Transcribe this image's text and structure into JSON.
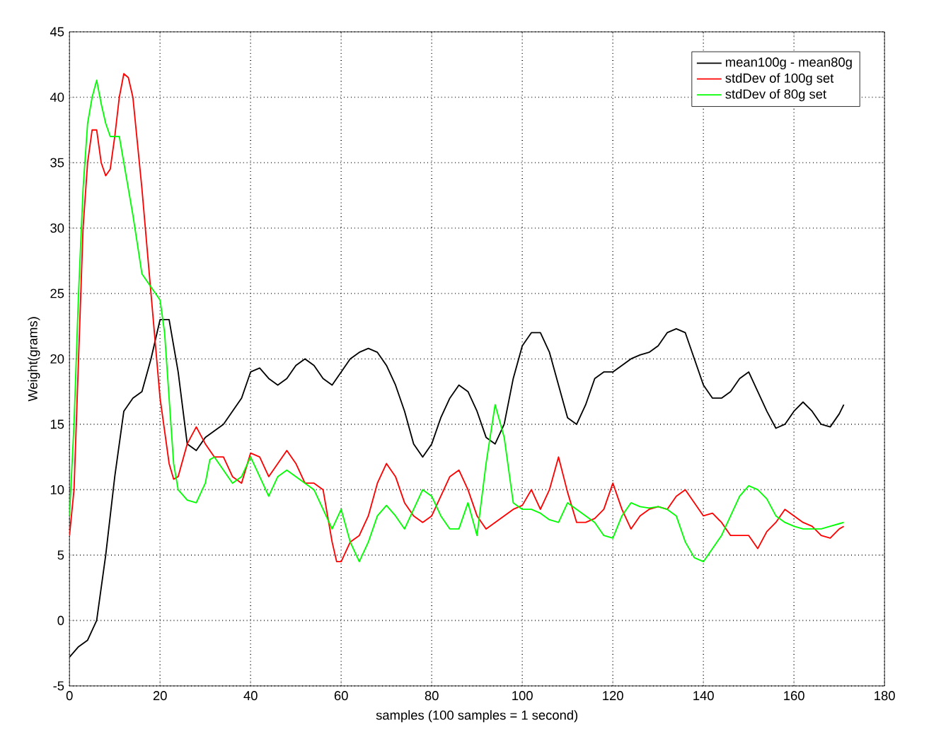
{
  "chart_data": {
    "type": "line",
    "xlabel": "samples (100 samples = 1 second)",
    "ylabel": "Weight(grams)",
    "xlim": [
      0,
      180
    ],
    "ylim": [
      -5,
      45
    ],
    "xticks": [
      0,
      20,
      40,
      60,
      80,
      100,
      120,
      140,
      160,
      180
    ],
    "yticks": [
      -5,
      0,
      5,
      10,
      15,
      20,
      25,
      30,
      35,
      40,
      45
    ],
    "grid": true,
    "legend": "top right",
    "line_style": "solid",
    "series": [
      {
        "name": "mean100g - mean80g",
        "color": "#000000",
        "x": [
          0,
          2,
          4,
          6,
          8,
          10,
          12,
          14,
          16,
          18,
          20,
          22,
          24,
          26,
          28,
          30,
          32,
          34,
          36,
          38,
          40,
          42,
          44,
          46,
          48,
          50,
          52,
          54,
          56,
          58,
          60,
          62,
          64,
          66,
          68,
          70,
          72,
          74,
          76,
          78,
          80,
          82,
          84,
          86,
          88,
          90,
          92,
          94,
          96,
          98,
          100,
          102,
          104,
          106,
          108,
          110,
          112,
          114,
          116,
          118,
          120,
          122,
          124,
          126,
          128,
          130,
          132,
          134,
          136,
          138,
          140,
          142,
          144,
          146,
          148,
          150,
          152,
          154,
          156,
          158,
          160,
          162,
          164,
          166,
          168,
          170,
          171
        ],
        "values": [
          -2.8,
          -2,
          -1.5,
          0,
          5,
          11,
          16,
          17,
          17.5,
          20,
          23,
          23,
          19,
          13.5,
          13,
          14,
          14.5,
          15,
          16,
          17,
          19,
          19.3,
          18.5,
          18,
          18.5,
          19.5,
          20,
          19.5,
          18.5,
          18,
          19,
          20,
          20.5,
          20.8,
          20.5,
          19.5,
          18,
          16,
          13.5,
          12.5,
          13.5,
          15.5,
          17,
          18,
          17.5,
          16,
          14,
          13.5,
          15,
          18.5,
          21,
          22,
          22,
          20.5,
          18,
          15.5,
          15,
          16.5,
          18.5,
          19,
          19,
          19.5,
          20,
          20.3,
          20.5,
          21,
          22,
          22.3,
          22,
          20,
          18,
          17,
          17,
          17.5,
          18.5,
          19,
          17.5,
          16,
          14.7,
          15,
          16,
          16.7,
          16,
          15,
          14.8,
          15.8,
          16.5
        ]
      },
      {
        "name": "stdDev of 100g set",
        "color": "#ff0000",
        "x": [
          0,
          1,
          2,
          3,
          4,
          5,
          6,
          7,
          8,
          9,
          10,
          11,
          12,
          13,
          14,
          16,
          18,
          20,
          22,
          23,
          24,
          26,
          28,
          30,
          32,
          34,
          36,
          38,
          40,
          42,
          44,
          46,
          48,
          50,
          52,
          54,
          56,
          58,
          59,
          60,
          62,
          64,
          66,
          68,
          70,
          72,
          74,
          76,
          78,
          80,
          82,
          84,
          86,
          88,
          90,
          92,
          94,
          96,
          98,
          100,
          102,
          104,
          106,
          108,
          110,
          112,
          114,
          116,
          118,
          120,
          122,
          124,
          126,
          128,
          130,
          132,
          134,
          136,
          138,
          140,
          142,
          144,
          146,
          148,
          150,
          152,
          154,
          156,
          158,
          160,
          162,
          164,
          166,
          168,
          170,
          171
        ],
        "values": [
          6.5,
          10,
          20,
          30,
          35,
          37.5,
          37.5,
          35,
          34,
          34.5,
          37,
          40,
          41.8,
          41.5,
          40,
          33,
          25,
          17,
          12,
          10.8,
          11,
          13.5,
          14.8,
          13.5,
          12.5,
          12.5,
          11,
          10.5,
          12.8,
          12.5,
          11,
          12,
          13,
          12,
          10.5,
          10.5,
          10,
          6,
          4.5,
          4.5,
          6,
          6.5,
          8,
          10.5,
          12,
          11,
          9,
          8,
          7.5,
          8,
          9.5,
          11,
          11.5,
          10,
          8,
          7,
          7.5,
          8,
          8.5,
          8.8,
          10,
          8.5,
          10,
          12.5,
          9.8,
          7.5,
          7.5,
          7.8,
          8.5,
          10.5,
          8.5,
          7,
          8,
          8.5,
          8.7,
          8.5,
          9.5,
          10,
          9,
          8,
          8.2,
          7.5,
          6.5,
          6.5,
          6.5,
          5.5,
          6.8,
          7.5,
          8.5,
          8,
          7.5,
          7.2,
          6.5,
          6.3,
          7,
          7.2
        ]
      },
      {
        "name": "stdDev of 80g set",
        "color": "#00ff00",
        "x": [
          0,
          1,
          2,
          3,
          4,
          5,
          6,
          7,
          8,
          9,
          10,
          11,
          12,
          14,
          16,
          18,
          20,
          21,
          22,
          23,
          24,
          26,
          28,
          30,
          31,
          32,
          34,
          36,
          38,
          40,
          42,
          44,
          46,
          48,
          50,
          52,
          54,
          56,
          58,
          60,
          62,
          64,
          66,
          68,
          70,
          72,
          74,
          76,
          78,
          80,
          82,
          84,
          86,
          88,
          90,
          92,
          94,
          96,
          98,
          100,
          102,
          104,
          106,
          108,
          110,
          112,
          114,
          116,
          118,
          120,
          122,
          124,
          126,
          128,
          130,
          132,
          134,
          136,
          138,
          140,
          142,
          144,
          146,
          148,
          150,
          152,
          154,
          156,
          158,
          160,
          162,
          164,
          166,
          168,
          170,
          171
        ],
        "values": [
          8,
          15,
          25,
          33,
          38,
          40,
          41.3,
          39.5,
          38,
          37,
          37,
          37,
          35,
          31,
          26.5,
          25.5,
          24.5,
          22,
          17,
          12,
          10,
          9.2,
          9,
          10.5,
          12.3,
          12.5,
          11.5,
          10.5,
          11,
          12.5,
          11,
          9.5,
          11,
          11.5,
          11,
          10.5,
          10,
          8.5,
          7,
          8.5,
          6,
          4.5,
          6,
          8,
          8.8,
          8,
          7,
          8.5,
          10,
          9.5,
          8,
          7,
          7,
          9,
          6.5,
          12,
          16.5,
          14,
          9,
          8.5,
          8.5,
          8.2,
          7.7,
          7.5,
          9,
          8.5,
          8,
          7.5,
          6.5,
          6.3,
          8,
          9,
          8.7,
          8.6,
          8.7,
          8.5,
          8,
          6,
          4.8,
          4.5,
          5.5,
          6.5,
          8,
          9.5,
          10.3,
          10,
          9.3,
          8,
          7.5,
          7.2,
          7,
          7,
          7,
          7.2,
          7.4,
          7.5
        ]
      }
    ]
  }
}
